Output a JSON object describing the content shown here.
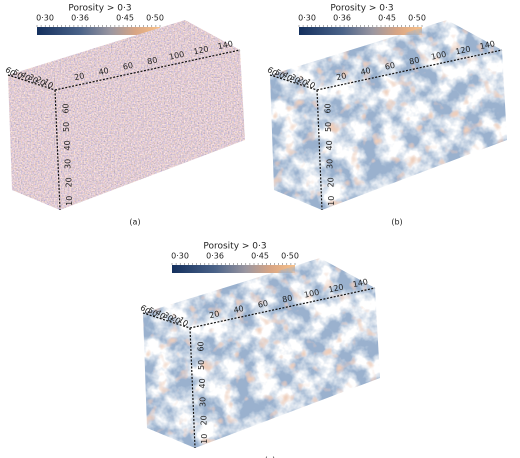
{
  "panels": [
    {
      "colorbar": {
        "title": "Porosity > 0·3",
        "ticks": [
          "0·30",
          "0·36",
          "0·45",
          "0·50"
        ]
      },
      "x_ticks": [
        "20",
        "40",
        "60",
        "80",
        "100",
        "120",
        "140"
      ],
      "depth_ticks": [
        "60",
        "50",
        "40",
        "30",
        "20",
        "10"
      ],
      "z_ticks": [
        "60",
        "50",
        "40",
        "30",
        "20",
        "10"
      ],
      "label": "(a)"
    },
    {
      "colorbar": {
        "title": "Porosity > 0·3",
        "ticks": [
          "0·30",
          "0·36",
          "0·45",
          "0·50"
        ]
      },
      "x_ticks": [
        "20",
        "40",
        "60",
        "80",
        "100",
        "120",
        "140"
      ],
      "depth_ticks": [
        "60",
        "50",
        "40",
        "30",
        "20",
        "10"
      ],
      "z_ticks": [
        "60",
        "50",
        "40",
        "30",
        "20",
        "10"
      ],
      "label": "(b)"
    },
    {
      "colorbar": {
        "title": "Porosity > 0·3",
        "ticks": [
          "0·30",
          "0·36",
          "0·45",
          "0·50"
        ]
      },
      "x_ticks": [
        "20",
        "40",
        "60",
        "80",
        "100",
        "120",
        "140"
      ],
      "depth_ticks": [
        "60",
        "50",
        "40",
        "30",
        "20",
        "10"
      ],
      "z_ticks": [
        "60",
        "50",
        "40",
        "30",
        "20",
        "10"
      ],
      "label": "(c)"
    }
  ]
}
